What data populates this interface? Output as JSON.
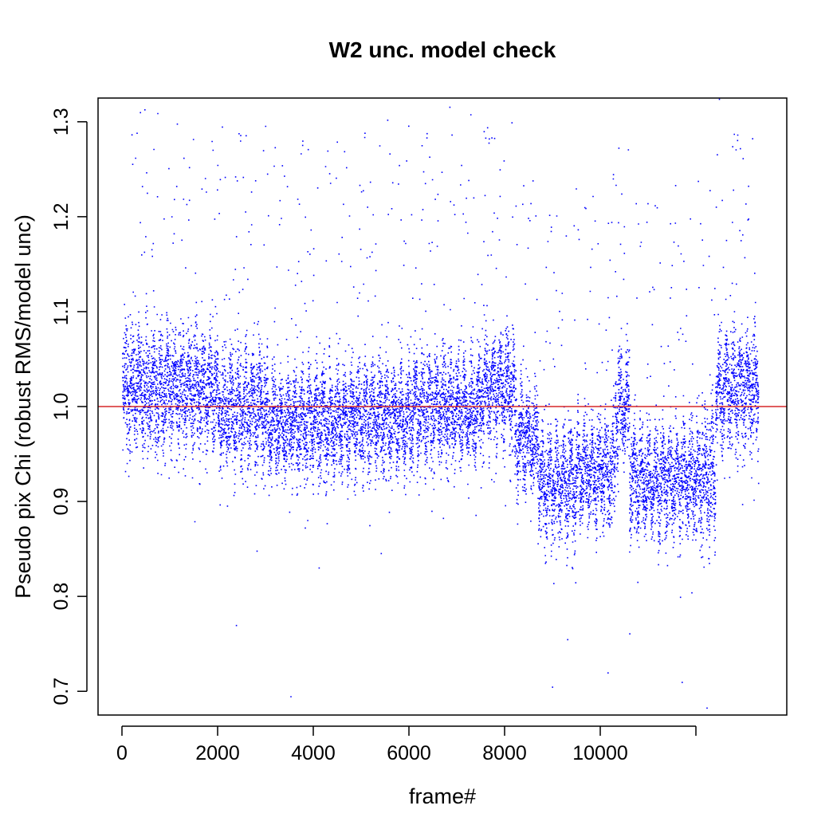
{
  "chart_data": {
    "type": "scatter",
    "title": "W2 unc. model check",
    "xlabel": "frame#",
    "ylabel": "Pseudo pix Chi (robust RMS/model unc)",
    "xlim": [
      -500,
      13900
    ],
    "ylim": [
      0.675,
      1.325
    ],
    "x_ticks": [
      0,
      2000,
      4000,
      6000,
      8000,
      10000,
      12000
    ],
    "x_tick_labels": [
      "0",
      "2000",
      "4000",
      "6000",
      "8000",
      "10000",
      ""
    ],
    "y_ticks": [
      0.7,
      0.8,
      0.9,
      1.0,
      1.1,
      1.2,
      1.3
    ],
    "y_tick_labels": [
      "0.7",
      "0.8",
      "0.9",
      "1.0",
      "1.1",
      "1.2",
      "1.3"
    ],
    "reference_line": {
      "y": 1.0,
      "color": "#d62728"
    },
    "point_color": "#0000ff",
    "n_points": 13300,
    "series": [
      {
        "segments": [
          {
            "x_range": [
              0,
              2000
            ],
            "center": 1.02,
            "spread": 0.055
          },
          {
            "x_range": [
              2000,
              3000
            ],
            "center": 1.0,
            "spread": 0.055
          },
          {
            "x_range": [
              3000,
              4500
            ],
            "center": 0.985,
            "spread": 0.05
          },
          {
            "x_range": [
              4500,
              6000
            ],
            "center": 0.99,
            "spread": 0.05
          },
          {
            "x_range": [
              6000,
              7500
            ],
            "center": 1.0,
            "spread": 0.05
          },
          {
            "x_range": [
              7500,
              8200
            ],
            "center": 1.02,
            "spread": 0.05
          },
          {
            "x_range": [
              8200,
              8700
            ],
            "center": 0.97,
            "spread": 0.05
          },
          {
            "x_range": [
              8700,
              9500
            ],
            "center": 0.92,
            "spread": 0.05
          },
          {
            "x_range": [
              9500,
              10300
            ],
            "center": 0.935,
            "spread": 0.05
          },
          {
            "x_range": [
              10300,
              10600
            ],
            "center": 1.0,
            "spread": 0.05
          },
          {
            "x_range": [
              10600,
              11300
            ],
            "center": 0.925,
            "spread": 0.05
          },
          {
            "x_range": [
              11300,
              12100
            ],
            "center": 0.925,
            "spread": 0.05
          },
          {
            "x_range": [
              12100,
              12400
            ],
            "center": 0.93,
            "spread": 0.07
          },
          {
            "x_range": [
              12400,
              13300
            ],
            "center": 1.02,
            "spread": 0.055
          }
        ],
        "notable_low_points": [
          {
            "x": 3520,
            "y": 0.695
          },
          {
            "x": 2380,
            "y": 0.77
          },
          {
            "x": 8990,
            "y": 0.705
          },
          {
            "x": 10150,
            "y": 0.72
          },
          {
            "x": 11700,
            "y": 0.71
          },
          {
            "x": 12220,
            "y": 0.683
          }
        ]
      }
    ]
  }
}
